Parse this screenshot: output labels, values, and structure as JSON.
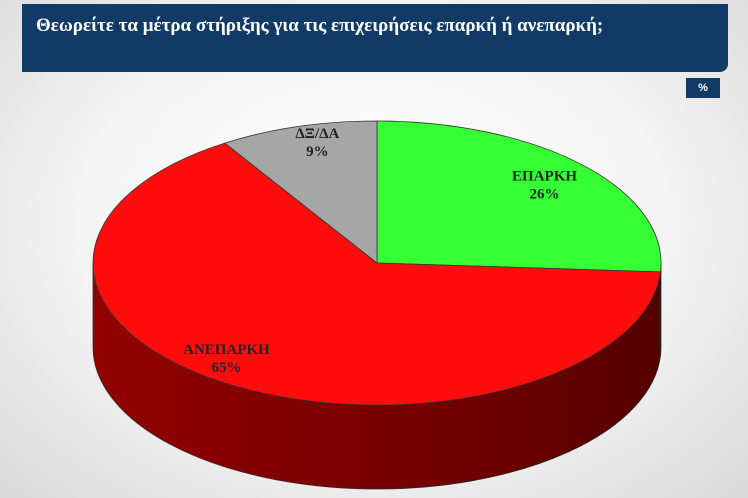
{
  "header": {
    "title": "Θεωρείτε τα μέτρα στήριξης για τις επιχειρήσεις επαρκή ή ανεπαρκή;",
    "unit_badge": "%"
  },
  "chart_data": {
    "type": "pie",
    "title": "Θεωρείτε τα μέτρα στήριξης για τις επιχειρήσεις επαρκή ή ανεπαρκή;",
    "unit": "%",
    "style": "3d",
    "slices": [
      {
        "label": "ΕΠΑΡΚΗ",
        "value": 26,
        "value_label": "26%",
        "color": "#33ff33",
        "side_color": "#1a9a1a"
      },
      {
        "label": "ΑΝΕΠΑΡΚΗ",
        "value": 65,
        "value_label": "65%",
        "color": "#ff0d0d",
        "side_color": "#9a0000"
      },
      {
        "label": "ΔΞ/ΔΑ",
        "value": 9,
        "value_label": "9%",
        "color": "#a6a6a6",
        "side_color": "#6e6e6e"
      }
    ]
  }
}
